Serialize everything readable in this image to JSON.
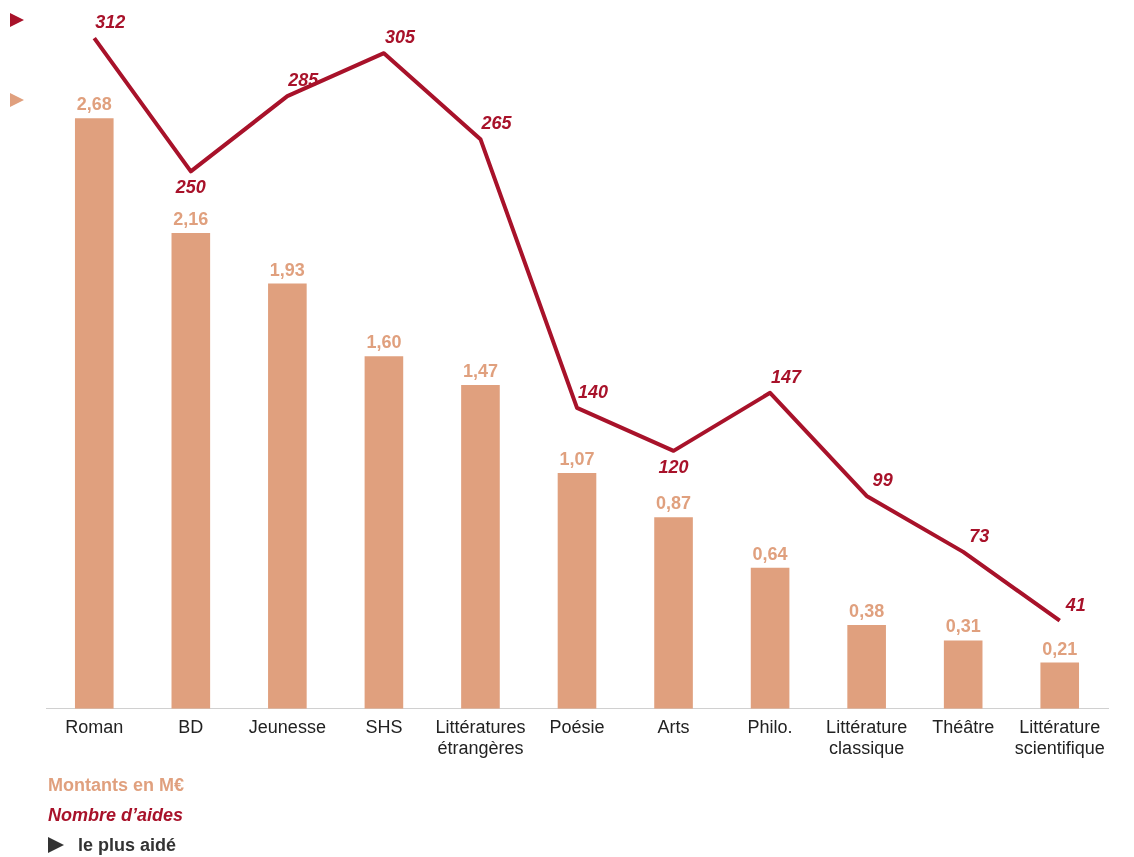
{
  "chart_data": {
    "type": "bar",
    "categories": [
      "Roman",
      "BD",
      "Jeunesse",
      "SHS",
      "Littératures étrangères",
      "Poésie",
      "Arts",
      "Philo.",
      "Littérature classique",
      "Théâtre",
      "Littérature scientifique"
    ],
    "series": [
      {
        "name": "Montants en M€",
        "color": "#e0a07e",
        "values": [
          2.68,
          2.16,
          1.93,
          1.6,
          1.47,
          1.07,
          0.87,
          0.64,
          0.38,
          0.31,
          0.21
        ],
        "value_labels": [
          "2,68",
          "2,16",
          "1,93",
          "1,60",
          "1,47",
          "1,07",
          "0,87",
          "0,64",
          "0,38",
          "0,31",
          "0,21"
        ]
      },
      {
        "name": "Nombre d’aides",
        "type": "line",
        "axis": "y2",
        "color": "#a8122a",
        "values": [
          312,
          250,
          285,
          305,
          265,
          140,
          120,
          147,
          99,
          73,
          41
        ],
        "value_labels": [
          "312",
          "250",
          "285",
          "305",
          "265",
          "140",
          "120",
          "147",
          "99",
          "73",
          "41"
        ]
      }
    ],
    "tick_labels": "x",
    "grid": false,
    "marker": "none",
    "line_style": "solid",
    "annotations": [
      "le plus aidé"
    ]
  }
}
